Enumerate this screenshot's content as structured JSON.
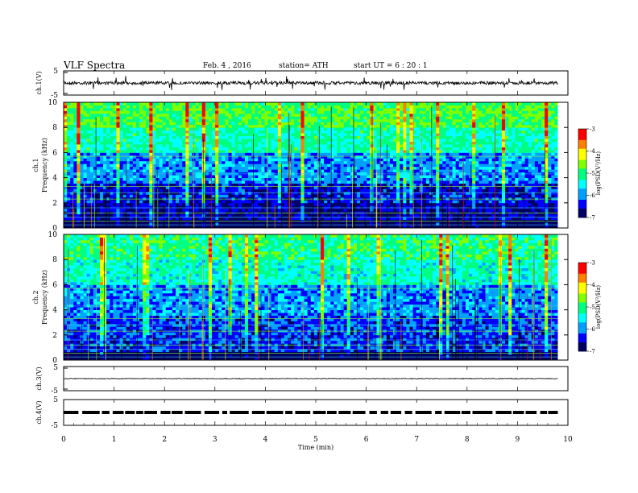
{
  "header": {
    "title": "VLF  Spectra",
    "date": "Feb. 4  , 2016",
    "station": "station= ATH",
    "start": "start  UT  =   6  : 20 : 1"
  },
  "x_axis": {
    "label": "Time  (min)",
    "ticks": [
      "0",
      "1",
      "2",
      "3",
      "4",
      "5",
      "6",
      "7",
      "8",
      "9",
      "10"
    ]
  },
  "colors": {
    "colormap": [
      "#000060",
      "#0000ff",
      "#00a0ff",
      "#00ffff",
      "#00ff80",
      "#80ff00",
      "#ffff00",
      "#ff8000",
      "#ff0000",
      "#ffffff"
    ]
  },
  "chart_data": [
    {
      "type": "line",
      "panel": "ch.1 waveform",
      "ylabel": "ch.1(V)",
      "y_ticks": [
        "5",
        "-5"
      ],
      "ylim": [
        -5,
        5
      ],
      "xlim": [
        0,
        10
      ],
      "mean_value": 0,
      "end_time_min": 9.8
    },
    {
      "type": "heatmap",
      "panel": "ch.1 spectrogram",
      "ylabel": "ch.1\nFrequency  (kHz)",
      "ylabel_lines": [
        "ch.1",
        "Frequency  (kHz)"
      ],
      "y_ticks": [
        "0",
        "2",
        "4",
        "6",
        "8",
        "10"
      ],
      "ylim": [
        0,
        10
      ],
      "xlim": [
        0,
        10
      ],
      "colorbar": {
        "label": "log(PSD(V²/Hz)",
        "ticks": [
          "-3",
          "-4",
          "-5",
          "-6",
          "-7"
        ],
        "range": [
          -7,
          -3
        ]
      },
      "band_profile": [
        {
          "freq_khz_max": 0.6,
          "log_psd": -7.0
        },
        {
          "freq_khz_max": 2.0,
          "log_psd": -6.6
        },
        {
          "freq_khz_max": 3.5,
          "log_psd": -6.4
        },
        {
          "freq_khz_max": 6.0,
          "log_psd": -5.9
        },
        {
          "freq_khz_max": 8.0,
          "log_psd": -5.2
        },
        {
          "freq_khz_max": 10.0,
          "log_psd": -4.8
        }
      ]
    },
    {
      "type": "heatmap",
      "panel": "ch.2 spectrogram",
      "ylabel": "ch.2\nFrequency  (kHz)",
      "ylabel_lines": [
        "ch.2",
        "Frequency  (kHz)"
      ],
      "y_ticks": [
        "0",
        "2",
        "4",
        "6",
        "8",
        "10"
      ],
      "ylim": [
        0,
        10
      ],
      "xlim": [
        0,
        10
      ],
      "colorbar": {
        "label": "log(PSD(V²/Hz)",
        "ticks": [
          "-3",
          "-4",
          "-5",
          "-6",
          "-7"
        ],
        "range": [
          -7,
          -3
        ]
      },
      "band_profile": [
        {
          "freq_khz_max": 0.6,
          "log_psd": -7.0
        },
        {
          "freq_khz_max": 2.0,
          "log_psd": -6.3
        },
        {
          "freq_khz_max": 3.5,
          "log_psd": -6.2
        },
        {
          "freq_khz_max": 6.0,
          "log_psd": -5.9
        },
        {
          "freq_khz_max": 8.0,
          "log_psd": -5.3
        },
        {
          "freq_khz_max": 10.0,
          "log_psd": -5.0
        }
      ]
    },
    {
      "type": "line",
      "panel": "ch.3 waveform",
      "ylabel": "ch.3(V)",
      "y_ticks": [
        "5",
        "-5"
      ],
      "ylim": [
        -5,
        5
      ],
      "xlim": [
        0,
        10
      ],
      "mean_value": 0,
      "end_time_min": 9.8
    },
    {
      "type": "line",
      "panel": "ch.4 waveform",
      "ylabel": "ch.4(V)",
      "y_ticks": [
        "5",
        "-5"
      ],
      "ylim": [
        -5,
        5
      ],
      "xlim": [
        0,
        10
      ],
      "mean_value": 0,
      "end_time_min": 9.8
    }
  ]
}
